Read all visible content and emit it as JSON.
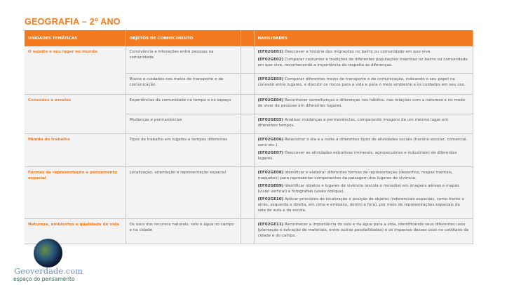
{
  "title": "GEOGRAFIA – 2º ANO",
  "headers": {
    "unidades": "UNIDADES TEMÁTICAS",
    "objetos": "OBJETOS DE CONHECIMENTO",
    "habilidades": "HABILIDADES"
  },
  "rows": [
    {
      "unidade": "O sujeito e seu lugar no mundo",
      "subs": [
        {
          "objeto": "Convivência e interações entre pessoas na comunidade",
          "hab": [
            {
              "code": "(EF02GE01)",
              "text": " Descrever a história das migrações no bairro ou comunidade em que vive."
            },
            {
              "code": "(EF02GE02)",
              "text": " Comparar costumes e tradições de diferentes populações inseridas no bairro ou comunidade em que vive, reconhecendo a importância do respeito às diferenças."
            }
          ]
        },
        {
          "objeto": "Riscos e cuidados nos meios de transporte e de comunicação",
          "hab": [
            {
              "code": "(EF02GE03)",
              "text": " Comparar diferentes meios de transporte e de comunicação, indicando o seu papel na conexão entre lugares, e discutir os riscos para a vida e para o meio ambiente e os cuidados em seu uso."
            }
          ]
        }
      ]
    },
    {
      "unidade": "Conexões e escalas",
      "subs": [
        {
          "objeto": "Experiências da comunidade no tempo e no espaço",
          "hab": [
            {
              "code": "(EF02GE04)",
              "text": " Reconhecer semelhanças e diferenças nos hábitos, nas relações com a natureza e no modo de viver de pessoas em diferentes lugares."
            }
          ]
        },
        {
          "objeto": "Mudanças e permanências",
          "hab": [
            {
              "code": "(EF02GE05)",
              "text": " Analisar mudanças e permanências, comparando imagens de um mesmo lugar em diferentes tempos."
            }
          ]
        }
      ]
    },
    {
      "unidade": "Mundo do trabalho",
      "subs": [
        {
          "objeto": "Tipos de trabalho em lugares e tempos diferentes",
          "hab": [
            {
              "code": "(EF02GE06)",
              "text": " Relacionar o dia e a noite a diferentes tipos de atividades sociais (horário escolar, comercial, sono etc.)."
            },
            {
              "code": "(EF02GE07)",
              "text": " Descrever as atividades extrativas (minerais, agropecuárias e industriais) de diferentes lugares."
            }
          ]
        }
      ]
    },
    {
      "unidade": "Formas de representação e pensamento espacial",
      "subs": [
        {
          "objeto": "Localização, orientação e representação espacial",
          "hab": [
            {
              "code": "(EF02GE08)",
              "text": " Identificar e elaborar diferentes formas de representação (desenhos, mapas mentais, maquetes) para representar componentes da paisagem dos lugares de vivência."
            },
            {
              "code": "(EF02GE09)",
              "text": " Identificar objetos e lugares de vivência (escola e moradia) em imagens aéreas e mapas (visão vertical) e fotografias (visão oblíqua)."
            },
            {
              "code": "(EF02GE10)",
              "text": " Aplicar princípios de localização e posição de objetos (referenciais espaciais, como frente e atrás, esquerda e direita, em cima e embaixo, dentro e fora), por meio de representações espaciais da sala de aula e da escola."
            }
          ]
        }
      ]
    },
    {
      "unidade": "Natureza, ambientes e qualidade de vida",
      "subs": [
        {
          "objeto": "Os usos dos recursos naturais: solo e água no campo e na cidade",
          "hab": [
            {
              "code": "(EF02GE11)",
              "text": " Reconhecer a importância do solo e da água para a vida, identificando seus diferentes usos (plantação e extração de materiais, entre outras possibilidades) e os impactos desses usos no cotidiano da cidade e do campo."
            }
          ]
        }
      ]
    }
  ],
  "logo": {
    "name": "Geoverdade.com",
    "tagline": "espaço do pensamento"
  },
  "colors": {
    "accent": "#f47a20"
  }
}
